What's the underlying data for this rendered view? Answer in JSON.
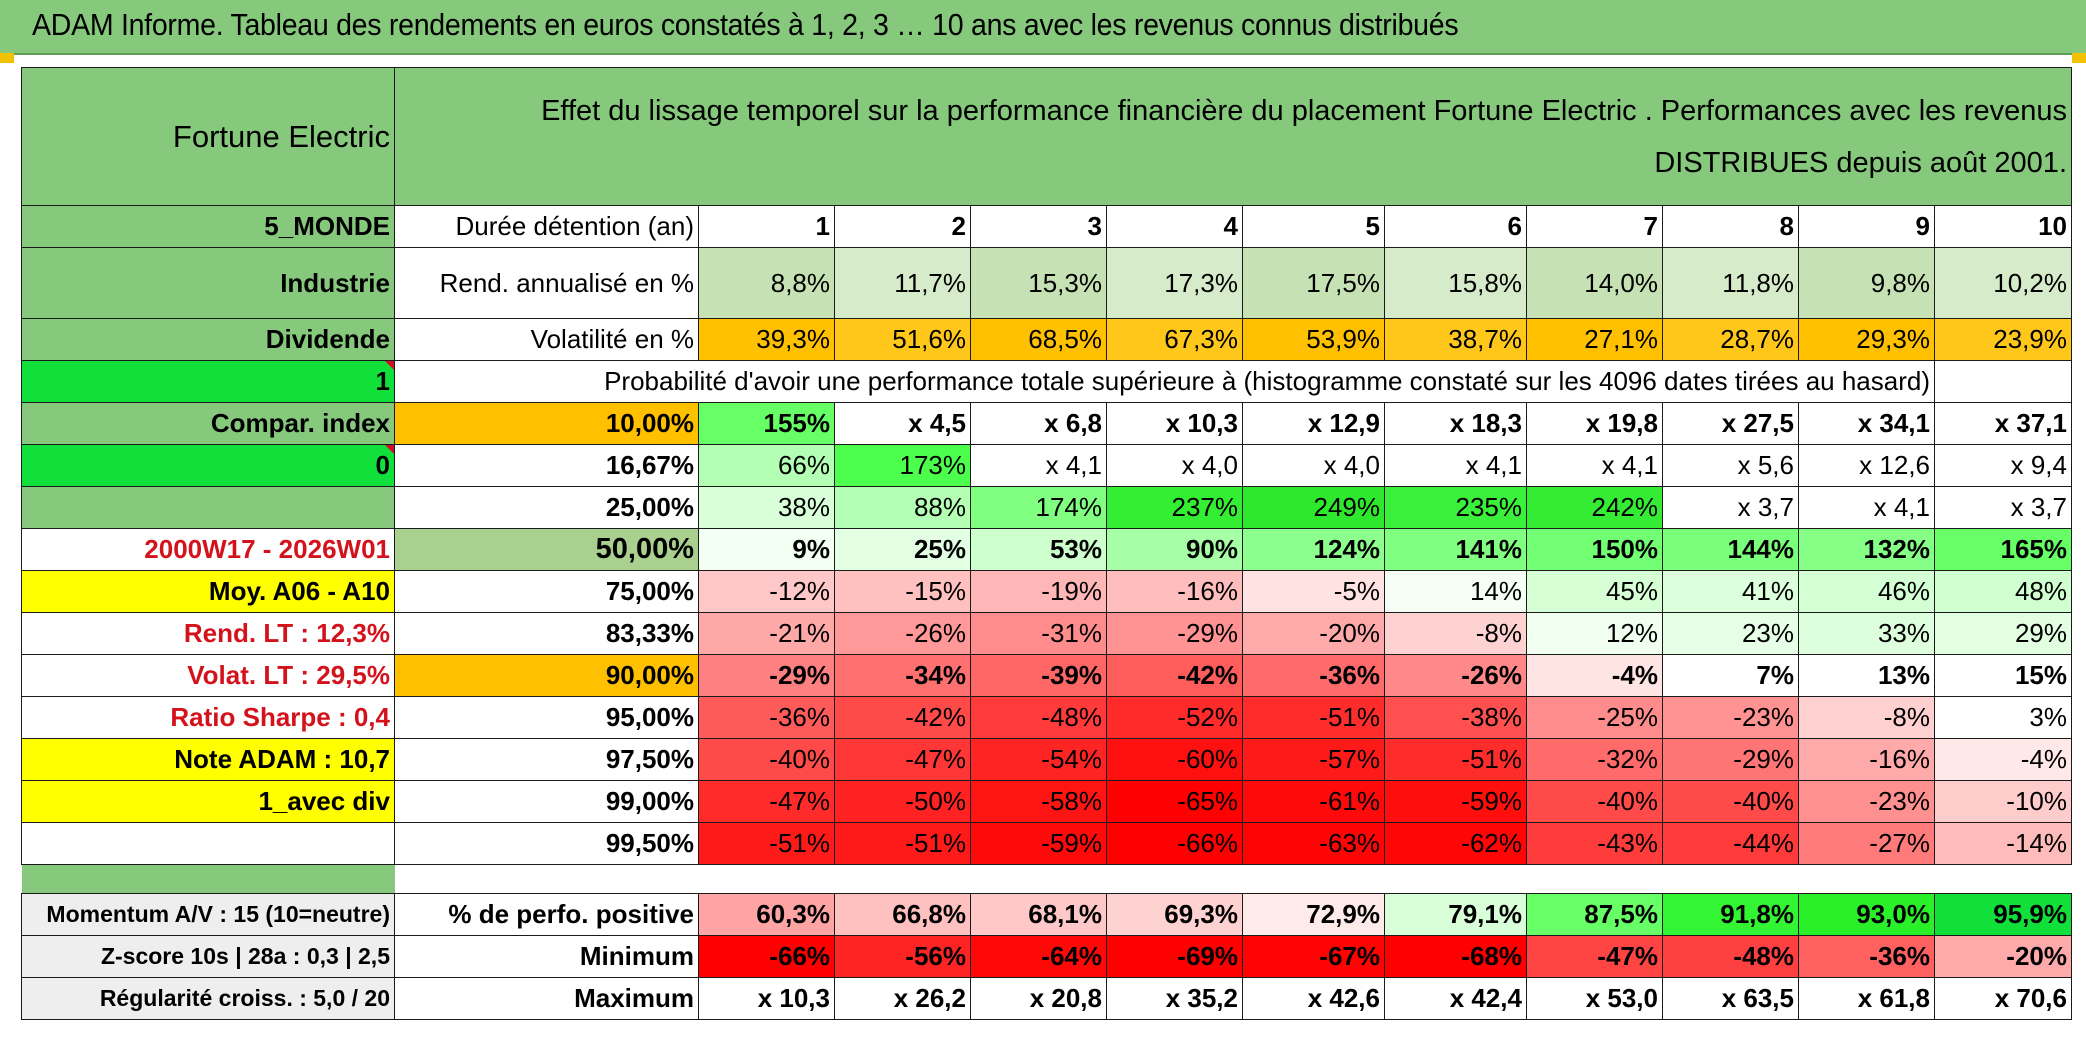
{
  "title": "ADAM Informe. Tableau des rendements en euros constatés à 1, 2, 3 … 10 ans avec les revenus connus distribués",
  "fund": "Fortune Electric",
  "header_text": "Effet du lissage temporel sur la performance financière du placement Fortune Electric . Performances avec les revenus DISTRIBUES depuis août 2001.",
  "side_labels": {
    "zone": "5_MONDE",
    "sector": "Industrie",
    "type": "Dividende",
    "one": "1",
    "compar": "Compar. index",
    "zero": "0",
    "period": "2000W17 - 2026W01",
    "moy": "Moy. A06 - A10",
    "rend_lt": "Rend. LT :    12,3%",
    "volat_lt": "Volat. LT :    29,5%",
    "sharpe": "Ratio Sharpe :    0,4",
    "note": "Note ADAM : 10,7",
    "avec_div": "1_avec div",
    "momentum": "Momentum A/V : 15 (10=neutre)",
    "zscore": "Z-score 10s | 28a : 0,3 | 2,5",
    "regularite": "Régularité croiss. : 5,0 / 20"
  },
  "row_labels": {
    "duree": "Durée détention (an)",
    "rend": "Rend. annualisé en %",
    "volat": "Volatilité en %",
    "proba": "Probabilité d'avoir une performance totale supérieure à (histogramme constaté sur les 4096 dates tirées au hasard)",
    "pct_pos": "% de perfo. positive",
    "minimum": "Minimum",
    "maximum": "Maximum"
  },
  "years": [
    "1",
    "2",
    "3",
    "4",
    "5",
    "6",
    "7",
    "8",
    "9",
    "10"
  ],
  "rend": [
    "8,8%",
    "11,7%",
    "15,3%",
    "17,3%",
    "17,5%",
    "15,8%",
    "14,0%",
    "11,8%",
    "9,8%",
    "10,2%"
  ],
  "volat": [
    "39,3%",
    "51,6%",
    "68,5%",
    "67,3%",
    "53,9%",
    "38,7%",
    "27,1%",
    "28,7%",
    "29,3%",
    "23,9%"
  ],
  "proba_rows": [
    {
      "pct": "10,00%",
      "values": [
        "155%",
        "x 4,5",
        "x 6,8",
        "x 10,3",
        "x 12,9",
        "x 18,3",
        "x 19,8",
        "x 27,5",
        "x 34,1",
        "x 37,1"
      ]
    },
    {
      "pct": "16,67%",
      "values": [
        "66%",
        "173%",
        "x 4,1",
        "x 4,0",
        "x 4,0",
        "x 4,1",
        "x 4,1",
        "x 5,6",
        "x 12,6",
        "x 9,4"
      ]
    },
    {
      "pct": "25,00%",
      "values": [
        "38%",
        "88%",
        "174%",
        "237%",
        "249%",
        "235%",
        "242%",
        "x 3,7",
        "x 4,1",
        "x 3,7"
      ]
    },
    {
      "pct": "50,00%",
      "values": [
        "9%",
        "25%",
        "53%",
        "90%",
        "124%",
        "141%",
        "150%",
        "144%",
        "132%",
        "165%"
      ]
    },
    {
      "pct": "75,00%",
      "values": [
        "-12%",
        "-15%",
        "-19%",
        "-16%",
        "-5%",
        "14%",
        "45%",
        "41%",
        "46%",
        "48%"
      ]
    },
    {
      "pct": "83,33%",
      "values": [
        "-21%",
        "-26%",
        "-31%",
        "-29%",
        "-20%",
        "-8%",
        "12%",
        "23%",
        "33%",
        "29%"
      ]
    },
    {
      "pct": "90,00%",
      "values": [
        "-29%",
        "-34%",
        "-39%",
        "-42%",
        "-36%",
        "-26%",
        "-4%",
        "7%",
        "13%",
        "15%"
      ]
    },
    {
      "pct": "95,00%",
      "values": [
        "-36%",
        "-42%",
        "-48%",
        "-52%",
        "-51%",
        "-38%",
        "-25%",
        "-23%",
        "-8%",
        "3%"
      ]
    },
    {
      "pct": "97,50%",
      "values": [
        "-40%",
        "-47%",
        "-54%",
        "-60%",
        "-57%",
        "-51%",
        "-32%",
        "-29%",
        "-16%",
        "-4%"
      ]
    },
    {
      "pct": "99,00%",
      "values": [
        "-47%",
        "-50%",
        "-58%",
        "-65%",
        "-61%",
        "-59%",
        "-40%",
        "-40%",
        "-23%",
        "-10%"
      ]
    },
    {
      "pct": "99,50%",
      "values": [
        "-51%",
        "-51%",
        "-59%",
        "-66%",
        "-63%",
        "-62%",
        "-43%",
        "-44%",
        "-27%",
        "-14%"
      ]
    }
  ],
  "pct_pos": [
    "60,3%",
    "66,8%",
    "68,1%",
    "69,3%",
    "72,9%",
    "79,1%",
    "87,5%",
    "91,8%",
    "93,0%",
    "95,9%"
  ],
  "minimum": [
    "-66%",
    "-56%",
    "-64%",
    "-69%",
    "-67%",
    "-68%",
    "-47%",
    "-48%",
    "-36%",
    "-20%"
  ],
  "maximum": [
    "x 10,3",
    "x 26,2",
    "x 20,8",
    "x 35,2",
    "x 42,6",
    "x 42,4",
    "x 53,0",
    "x 63,5",
    "x 61,8",
    "x 70,6"
  ],
  "colors": {
    "header_green": "#86c97c",
    "light_green": "#c6e2b5",
    "bright_green": "#11e03a",
    "yellow": "#ffff00",
    "orange": "#ffc000",
    "red_text": "#d4121b",
    "proba_cells": [
      [
        "#66ff66",
        "#ffffff",
        "#ffffff",
        "#ffffff",
        "#ffffff",
        "#ffffff",
        "#ffffff",
        "#ffffff",
        "#ffffff",
        "#ffffff"
      ],
      [
        "#b3ffb3",
        "#4dff4d",
        "#ffffff",
        "#ffffff",
        "#ffffff",
        "#ffffff",
        "#ffffff",
        "#ffffff",
        "#ffffff",
        "#ffffff"
      ],
      [
        "#d9ffd9",
        "#b3ffb3",
        "#80ff80",
        "#33ee33",
        "#2ee82e",
        "#3af03a",
        "#33ec33",
        "#ffffff",
        "#ffffff",
        "#ffffff"
      ],
      [
        "#f3fff3",
        "#e3ffe3",
        "#ccffcc",
        "#a6ffa6",
        "#8cff8c",
        "#80ff80",
        "#73ff73",
        "#7aff7a",
        "#86ff86",
        "#66ff66"
      ],
      [
        "#ffc8c8",
        "#ffc0c0",
        "#ffb6b6",
        "#ffbebe",
        "#ffe2e2",
        "#f6fff6",
        "#d6ffd6",
        "#dcffdc",
        "#d4ffd4",
        "#d0ffd0"
      ],
      [
        "#ffa8a8",
        "#ff9999",
        "#ff8c8c",
        "#ff9393",
        "#ffaaaa",
        "#ffd2d2",
        "#f0fff0",
        "#e6ffe6",
        "#deffde",
        "#e2ffe2"
      ],
      [
        "#ff8080",
        "#ff7070",
        "#ff6666",
        "#ff5c5c",
        "#ff6b6b",
        "#ff8888",
        "#ffe4e4",
        "#ffffff",
        "#ffffff",
        "#ffffff"
      ],
      [
        "#ff5a5a",
        "#ff4a4a",
        "#ff3a3a",
        "#ff2a2a",
        "#ff2c2c",
        "#ff5050",
        "#ff8c8c",
        "#ff9292",
        "#ffd0d0",
        "#ffffff"
      ],
      [
        "#ff4a4a",
        "#ff3636",
        "#ff2424",
        "#ff1010",
        "#ff1a1a",
        "#ff2c2c",
        "#ff6a6a",
        "#ff7474",
        "#ffaaaa",
        "#ffe8e8"
      ],
      [
        "#ff2a2a",
        "#ff2222",
        "#ff1414",
        "#ff0000",
        "#ff0a0a",
        "#ff0e0e",
        "#ff4a4a",
        "#ff4a4a",
        "#ff9090",
        "#ffcccc"
      ],
      [
        "#ff1a1a",
        "#ff1a1a",
        "#ff0a0a",
        "#ff0000",
        "#ff0404",
        "#ff0606",
        "#ff3c3c",
        "#ff3a3a",
        "#ff7a7a",
        "#ffbaba"
      ]
    ],
    "pct_pos_cells": [
      "#ffa4a4",
      "#ffc0c0",
      "#ffc8c8",
      "#ffd2d2",
      "#ffeaea",
      "#d8ffd8",
      "#66ff66",
      "#33f533",
      "#2af02a",
      "#11e03a"
    ],
    "min_cells": [
      "#ff0000",
      "#ff2424",
      "#ff0808",
      "#ff0000",
      "#ff0202",
      "#ff0000",
      "#ff4444",
      "#ff4040",
      "#ff6060",
      "#ffaaaa"
    ]
  }
}
